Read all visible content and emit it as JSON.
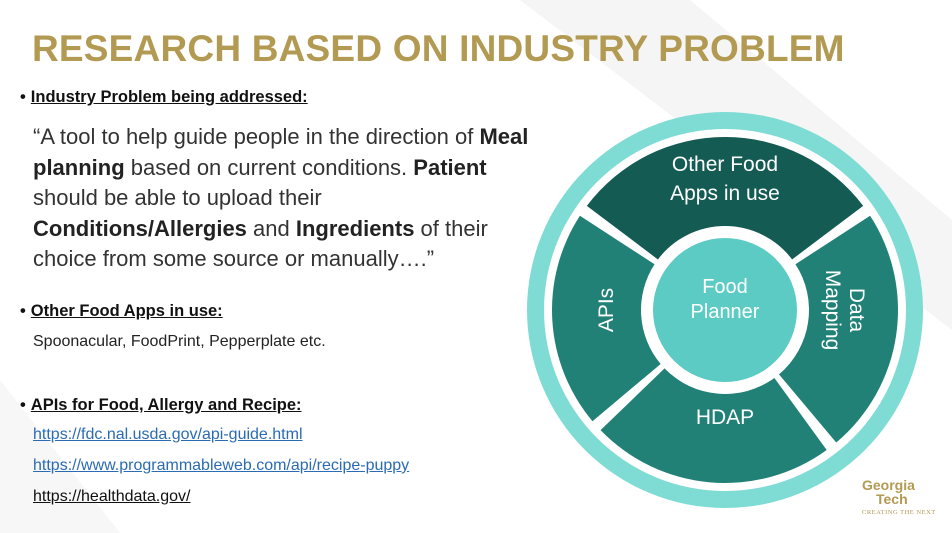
{
  "slide": {
    "title": "RESEARCH BASED ON INDUSTRY PROBLEM",
    "bullet_char": "•",
    "industry": {
      "label": "Industry Problem being addressed:",
      "quote": [
        {
          "t": "“A tool to help guide people in the direction of ",
          "b": false
        },
        {
          "t": "Meal planning",
          "b": true
        },
        {
          "t": " based on current conditions. ",
          "b": false
        },
        {
          "t": "Patient",
          "b": true
        },
        {
          "t": " should be able to upload their ",
          "b": false
        },
        {
          "t": "Conditions/Allergies",
          "b": true
        },
        {
          "t": " and ",
          "b": false
        },
        {
          "t": "Ingredients",
          "b": true
        },
        {
          "t": " of their choice from some source or manually….”",
          "b": false
        }
      ]
    },
    "apps": {
      "label": "Other Food Apps in use:",
      "text": "Spoonacular, FoodPrint, Pepperplate etc."
    },
    "apis": {
      "label": "APIs for Food, Allergy and Recipe:",
      "links": [
        "https://fdc.nal.usda.gov/api-guide.html",
        "https://www.programmableweb.com/api/recipe-puppy",
        "https://healthdata.gov/"
      ]
    }
  },
  "diagram": {
    "center_line1": "Food",
    "center_line2": "Planner",
    "top_line1": "Other Food",
    "top_line2": "Apps in use",
    "right_line1": "Data",
    "right_line2": "Mapping",
    "bottom": "HDAP",
    "left": "APIs",
    "colors": {
      "ring": "#7fdcd4",
      "segment": "#218176",
      "segment_dark": "#145b54",
      "center": "#5ccbc4",
      "title": "#b39a52"
    }
  },
  "logo": {
    "line1": "Georgia",
    "line2": "Tech",
    "tagline": "CREATING THE NEXT"
  }
}
